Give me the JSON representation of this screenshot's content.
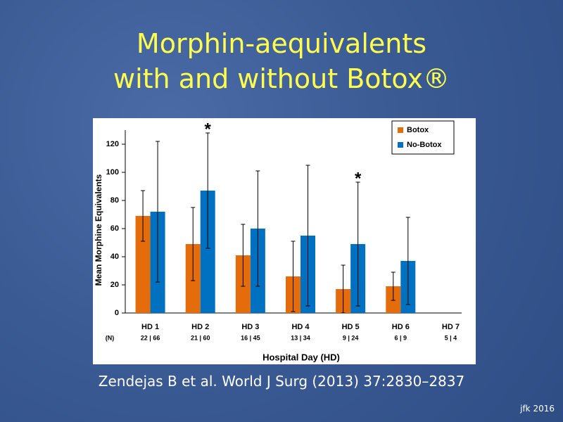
{
  "slide": {
    "title_lines": [
      "Morphin-aequivalents",
      "with and without Botox®"
    ],
    "citation": "Zendejas B et al. World J Surg (2013) 37:2830–2837",
    "footer": "jfk 2016"
  },
  "chart_data": {
    "type": "bar",
    "categories": [
      "HD 1",
      "HD 2",
      "HD 3",
      "HD 4",
      "HD 5",
      "HD 6",
      "HD 7"
    ],
    "series": [
      {
        "name": "Botox",
        "color": "#e46c0a",
        "values": [
          69,
          49,
          41,
          26,
          17,
          19,
          null
        ],
        "errors": [
          18,
          26,
          22,
          25,
          17,
          10,
          null
        ]
      },
      {
        "name": "No-Botox",
        "color": "#0070c0",
        "values": [
          72,
          87,
          60,
          55,
          49,
          37,
          null
        ],
        "errors": [
          50,
          41,
          41,
          50,
          44,
          31,
          null
        ]
      }
    ],
    "significance": [
      null,
      "*",
      null,
      null,
      "*",
      null,
      null
    ],
    "n_label": "(N)",
    "n_counts": [
      "22 | 66",
      "21 | 60",
      "16 | 45",
      "13 | 34",
      "9 | 24",
      "6 | 9",
      "5 | 4"
    ],
    "xlabel": "Hospital Day (HD)",
    "ylabel": "Mean Morphine Equivalents",
    "ylim": [
      0,
      130
    ],
    "yticks": [
      0,
      20,
      40,
      60,
      80,
      100,
      120
    ],
    "grid": false,
    "legend": "top-right"
  }
}
